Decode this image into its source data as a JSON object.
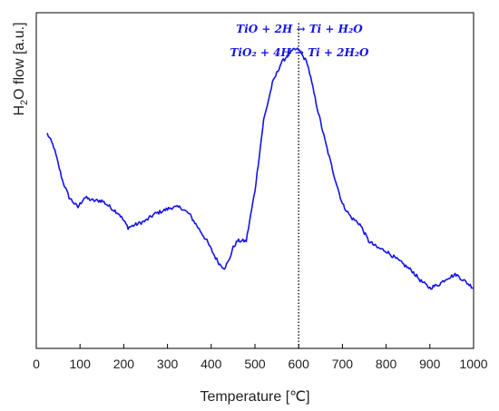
{
  "chart_data": {
    "type": "line",
    "title": "",
    "xlabel": "Temperature [℃]",
    "ylabel": "H2O flow [a.u.]",
    "ylabel_parts": {
      "main": "H",
      "sub": "2",
      "rest": "O flow [a.u.]"
    },
    "xlim": [
      0,
      1000
    ],
    "ylim": [
      0,
      100
    ],
    "x_ticks": [
      0,
      100,
      200,
      300,
      400,
      500,
      600,
      700,
      800,
      900,
      1000
    ],
    "x_tick_labels": [
      "0",
      "100",
      "200",
      "300",
      "400",
      "500",
      "600",
      "700",
      "800",
      "900",
      "1000"
    ],
    "y_ticks_shown": false,
    "grid": false,
    "legend": "none",
    "line_color": "#1414e6",
    "reference_line": {
      "x": 600,
      "style": "dotted",
      "color": "#000000"
    },
    "annotations": [
      {
        "text": "TiO + 2H → Ti + H₂O",
        "color": "#1414e6"
      },
      {
        "text": "TiO₂ + 4H → Ti + 2H₂O",
        "color": "#1414e6"
      }
    ],
    "series": [
      {
        "x": [
          25,
          40,
          60,
          75,
          95,
          110,
          130,
          150,
          170,
          190,
          210,
          230,
          250,
          270,
          290,
          310,
          330,
          350,
          370,
          390,
          410,
          420,
          430,
          440,
          450,
          460,
          480,
          500,
          520,
          540,
          560,
          580,
          590,
          600,
          620,
          640,
          660,
          680,
          700,
          720,
          740,
          760,
          780,
          800,
          820,
          840,
          860,
          880,
          900,
          920,
          940,
          960,
          980,
          1000
        ],
        "y": [
          64,
          60,
          50,
          45,
          42,
          45,
          44,
          44,
          42,
          40,
          36,
          37,
          38,
          40,
          41,
          42,
          42,
          40,
          36,
          32,
          27,
          25,
          24,
          26,
          30,
          32,
          32,
          47,
          68,
          79,
          85,
          88,
          89,
          89,
          85,
          73,
          62,
          52,
          43,
          39,
          37,
          32,
          30,
          29,
          27,
          25,
          23,
          20,
          18,
          19,
          21,
          22,
          20,
          18
        ]
      }
    ]
  }
}
